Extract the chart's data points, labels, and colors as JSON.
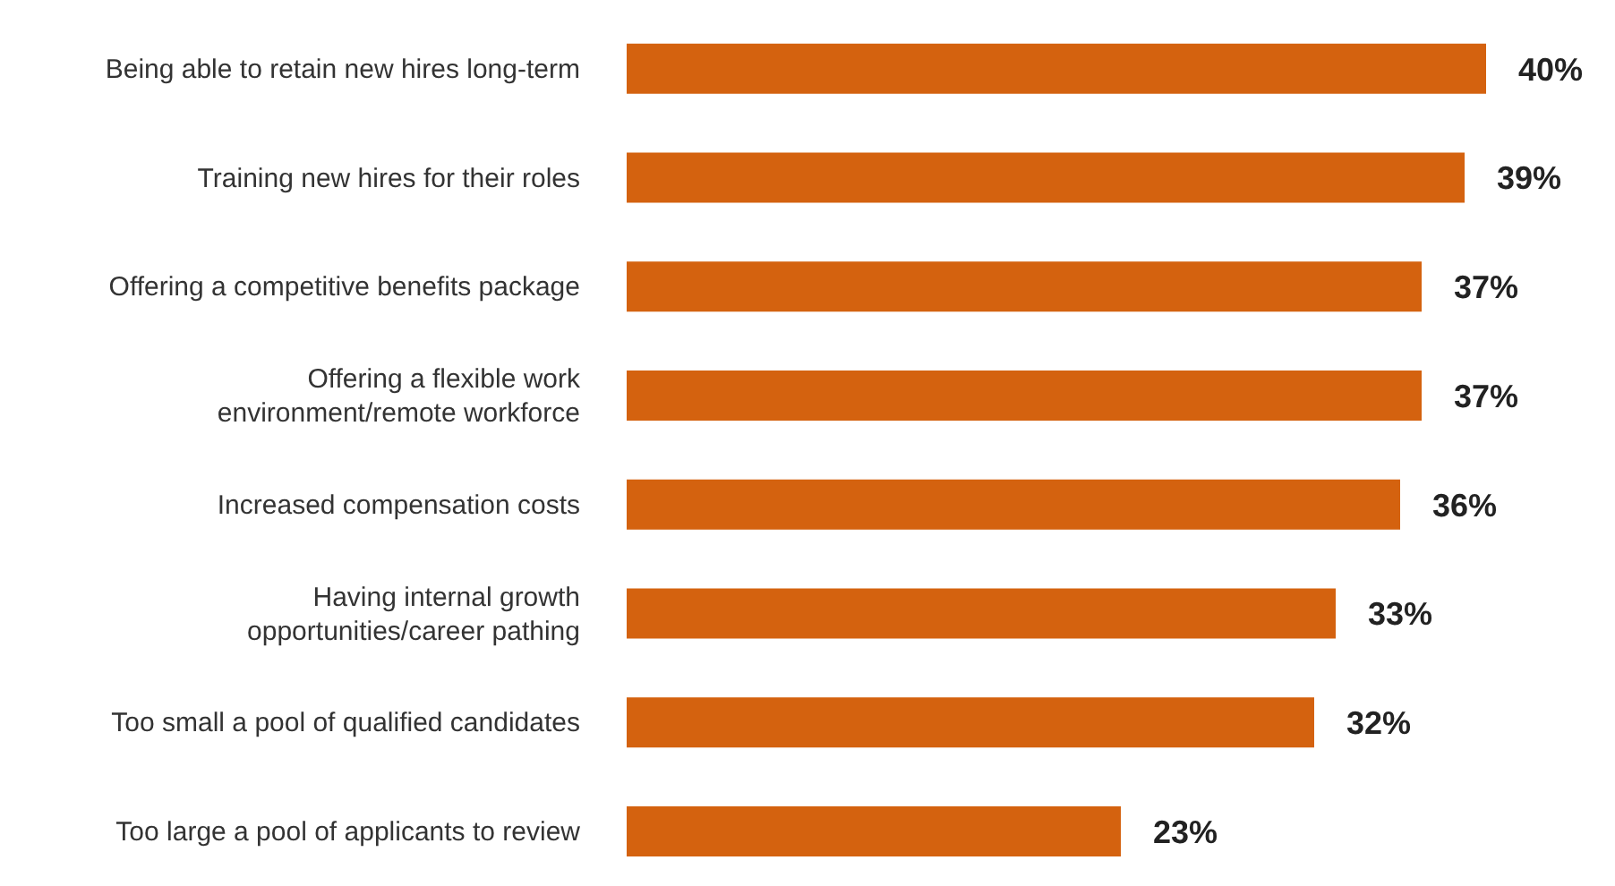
{
  "chart_data": {
    "type": "bar",
    "orientation": "horizontal",
    "categories": [
      "Being able to retain new hires long-term",
      "Training new hires for their roles",
      "Offering a competitive benefits package",
      "Offering a flexible work\nenvironment/remote workforce",
      "Increased compensation costs",
      "Having internal growth\nopportunities/career pathing",
      "Too small a pool of qualified candidates",
      "Too large a pool of applicants to review"
    ],
    "values": [
      40,
      39,
      37,
      37,
      36,
      33,
      32,
      23
    ],
    "value_labels": [
      "40%",
      "39%",
      "37%",
      "37%",
      "36%",
      "33%",
      "32%",
      "23%"
    ],
    "color": "#d4620f"
  }
}
